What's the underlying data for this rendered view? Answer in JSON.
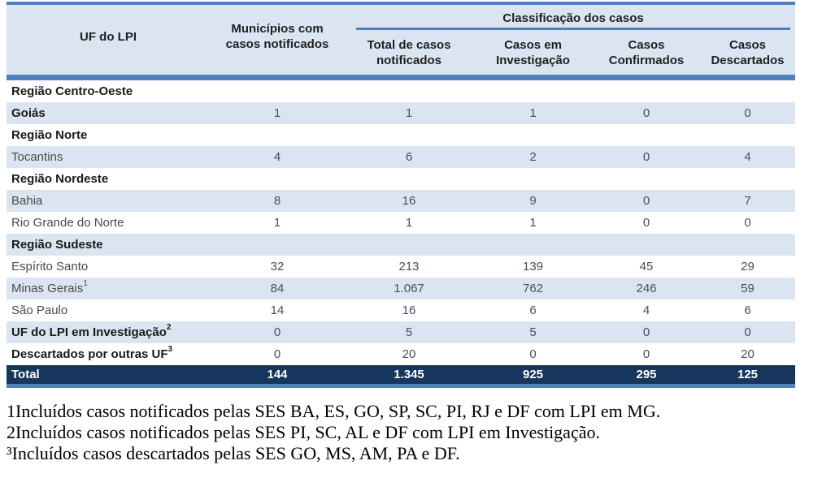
{
  "table": {
    "header": {
      "uf": "UF do LPI",
      "municipios": "Municípios com casos notificados",
      "group": "Classificação dos casos",
      "columns": [
        "Total de casos notificados",
        "Casos em Investigação",
        "Casos Confirmados",
        "Casos Descartados"
      ]
    },
    "rows": [
      {
        "label": "Região Centro-Oeste",
        "bold": true,
        "bg": "white",
        "values": [
          "",
          "",
          "",
          "",
          ""
        ]
      },
      {
        "label": "Goiás",
        "bold": true,
        "bg": "blue",
        "values": [
          "1",
          "1",
          "1",
          "0",
          "0"
        ]
      },
      {
        "label": "Região Norte",
        "bold": true,
        "bg": "white",
        "values": [
          "",
          "",
          "",
          "",
          ""
        ]
      },
      {
        "label": "Tocantins",
        "bold": false,
        "bg": "blue",
        "values": [
          "4",
          "6",
          "2",
          "0",
          "4"
        ]
      },
      {
        "label": "Região Nordeste",
        "bold": true,
        "bg": "white",
        "values": [
          "",
          "",
          "",
          "",
          ""
        ]
      },
      {
        "label": "Bahia",
        "bold": false,
        "bg": "blue",
        "values": [
          "8",
          "16",
          "9",
          "0",
          "7"
        ]
      },
      {
        "label": "Rio Grande do Norte",
        "bold": false,
        "bg": "white",
        "values": [
          "1",
          "1",
          "1",
          "0",
          "0"
        ]
      },
      {
        "label": "Região Sudeste",
        "bold": true,
        "bg": "blue",
        "values": [
          "",
          "",
          "",
          "",
          ""
        ]
      },
      {
        "label": "Espírito Santo",
        "bold": false,
        "bg": "white",
        "values": [
          "32",
          "213",
          "139",
          "45",
          "29"
        ]
      },
      {
        "label": "Minas Gerais",
        "sup": "1",
        "bold": false,
        "bg": "blue",
        "values": [
          "84",
          "1.067",
          "762",
          "246",
          "59"
        ]
      },
      {
        "label": "São Paulo",
        "bold": false,
        "bg": "white",
        "values": [
          "14",
          "16",
          "6",
          "4",
          "6"
        ]
      },
      {
        "label": "UF do LPI em Investigação",
        "sup": "2",
        "bold": true,
        "bg": "blue",
        "values": [
          "0",
          "5",
          "5",
          "0",
          "0"
        ]
      },
      {
        "label": "Descartados por outras UF",
        "sup": "3",
        "bold": true,
        "bg": "white",
        "values": [
          "0",
          "20",
          "0",
          "0",
          "20"
        ]
      }
    ],
    "total": {
      "label": "Total",
      "values": [
        "144",
        "1.345",
        "925",
        "295",
        "125"
      ]
    }
  },
  "footnotes": [
    "1Incluídos casos notificados pelas SES BA, ES, GO, SP, SC, PI, RJ e DF com LPI em MG.",
    "2Incluídos casos notificados pelas SES PI, SC, AL e DF com LPI em Investigação.",
    "³Incluídos casos descartados pelas SES GO, MS, AM, PA e DF."
  ],
  "colors": {
    "accent_blue": "#4f81bd",
    "light_blue": "#dbe5f1",
    "navy": "#17365d"
  }
}
